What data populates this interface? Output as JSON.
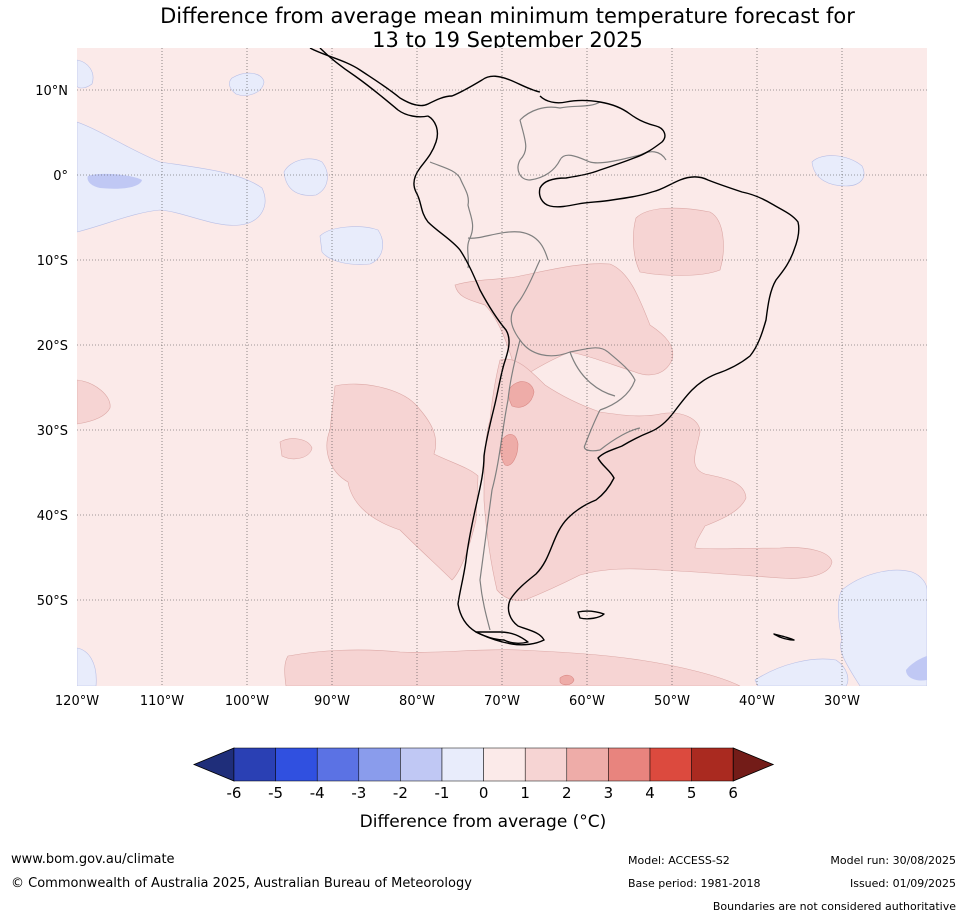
{
  "title_line1": "Difference from average mean minimum temperature forecast for",
  "title_line2": "13 to 19 September 2025",
  "lat_labels": [
    "10°N",
    "0°",
    "10°S",
    "20°S",
    "30°S",
    "40°S",
    "50°S"
  ],
  "lon_labels": [
    "120°W",
    "110°W",
    "100°W",
    "90°W",
    "80°W",
    "70°W",
    "60°W",
    "50°W",
    "40°W",
    "30°W"
  ],
  "legend": {
    "title": "Difference from average (°C)",
    "ticks": [
      "-6",
      "-5",
      "-4",
      "-3",
      "-2",
      "-1",
      "0",
      "1",
      "2",
      "3",
      "4",
      "5",
      "6"
    ],
    "colors": [
      "#1f2e7a",
      "#2a40b4",
      "#3050e0",
      "#5b72e4",
      "#8a9cec",
      "#c0c8f4",
      "#e8ecfb",
      "#fbeae9",
      "#f6d4d3",
      "#eeaca8",
      "#e8847e",
      "#dc4a3e",
      "#aa2a20",
      "#731c18"
    ]
  },
  "colors": {
    "land_border": "#000000",
    "country_border": "#808080",
    "grid": "#444444"
  },
  "footer": {
    "url": "www.bom.gov.au/climate",
    "copyright": "© Commonwealth of Australia 2025, Australian Bureau of Meteorology",
    "model": "Model: ACCESS-S2",
    "base_period": "Base period: 1981-2018",
    "model_run": "Model run: 30/08/2025",
    "issued": "Issued: 01/09/2025",
    "disclaimer": "Boundaries are not considered authoritative"
  }
}
